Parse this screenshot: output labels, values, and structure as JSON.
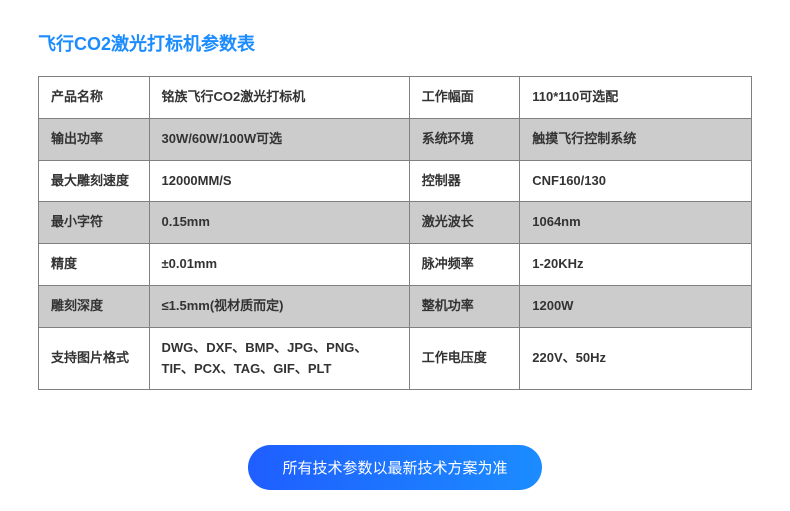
{
  "title": "飞行CO2激光打标机参数表",
  "colors": {
    "title": "#1b8cff",
    "border": "#808080",
    "row_alt_bg": "#cccccc",
    "row_bg": "#ffffff",
    "text": "#333333",
    "pill_gradient_start": "#1f5eff",
    "pill_gradient_end": "#1b8cff",
    "pill_text": "#ffffff"
  },
  "typography": {
    "title_fontsize": 18,
    "cell_fontsize": 13,
    "cell_fontweight": "bold",
    "pill_fontsize": 15
  },
  "columns": {
    "widths_percent": [
      15.5,
      36.5,
      15.5,
      32.5
    ]
  },
  "rows": [
    {
      "k1": "产品名称",
      "v1": "铭族飞行CO2激光打标机",
      "k2": "工作幅面",
      "v2": "110*110可选配"
    },
    {
      "k1": "输出功率",
      "v1": "30W/60W/100W可选",
      "k2": "系统环境",
      "v2": "触摸飞行控制系统"
    },
    {
      "k1": "最大雕刻速度",
      "v1": "12000MM/S",
      "k2": "控制器",
      "v2": "CNF160/130"
    },
    {
      "k1": "最小字符",
      "v1": "0.15mm",
      "k2": "激光波长",
      "v2": "1064nm"
    },
    {
      "k1": "精度",
      "v1": "±0.01mm",
      "k2": "脉冲频率",
      "v2": "1-20KHz"
    },
    {
      "k1": "雕刻深度",
      "v1": "≤1.5mm(视材质而定)",
      "k2": "整机功率",
      "v2": "1200W"
    },
    {
      "k1": "支持图片格式",
      "v1": "DWG、DXF、BMP、JPG、PNG、TIF、PCX、TAG、GIF、PLT",
      "k2": "工作电压度",
      "v2": "220V、50Hz"
    }
  ],
  "footer_note": "所有技术参数以最新技术方案为准"
}
